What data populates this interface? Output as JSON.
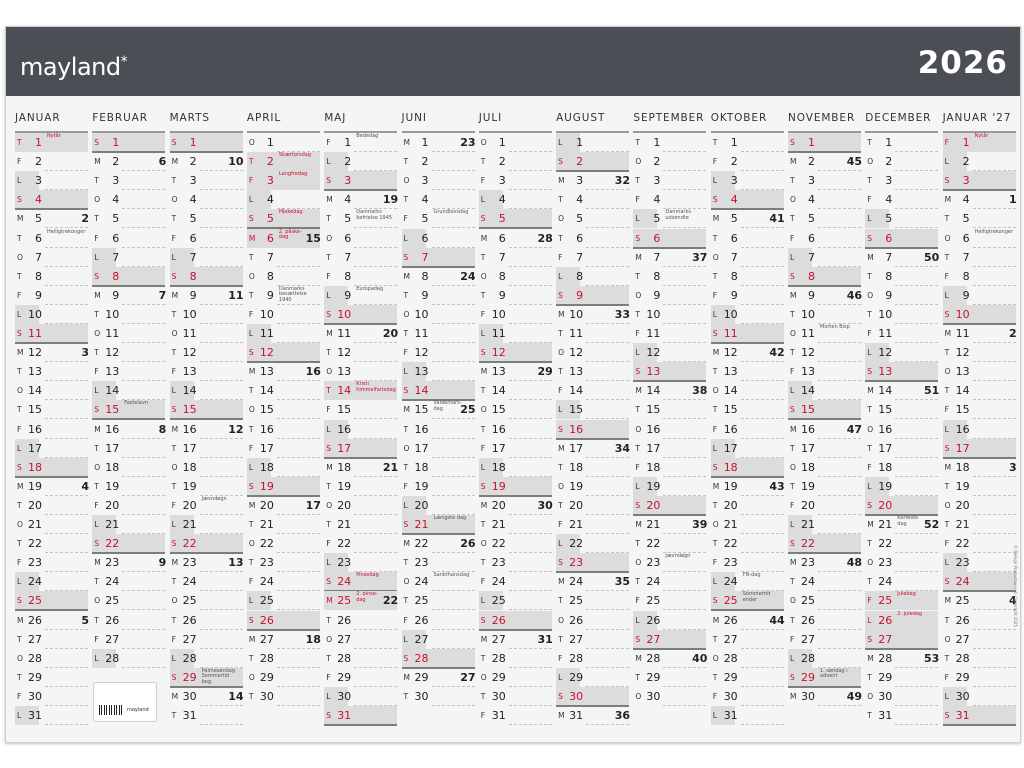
{
  "brand": {
    "logo": "mayland",
    "logo_mark": "*"
  },
  "year": "2026",
  "weekday_letters": [
    "S",
    "M",
    "T",
    "O",
    "T",
    "F",
    "L"
  ],
  "colors": {
    "header": "#4b4e54",
    "red": "#c8102e",
    "shade": "#dcdcdc"
  },
  "months": [
    {
      "name": "JANUAR",
      "y": 2026,
      "m": 1,
      "days": 31,
      "weeks": {
        "5": 2,
        "12": 3,
        "19": 4,
        "26": 5
      },
      "notes": {
        "1": {
          "text": "Nytår",
          "red": true
        },
        "6": {
          "text": "Helligtrekonger"
        }
      }
    },
    {
      "name": "FEBRUAR",
      "y": 2026,
      "m": 2,
      "days": 28,
      "weeks": {
        "2": 6,
        "9": 7,
        "16": 8,
        "23": 9
      },
      "notes": {
        "15": {
          "text": "Fastelavn"
        }
      }
    },
    {
      "name": "MARTS",
      "y": 2026,
      "m": 3,
      "days": 31,
      "weeks": {
        "2": 10,
        "9": 11,
        "16": 12,
        "23": 13,
        "30": 14
      },
      "notes": {
        "20": {
          "text": "Jævndøgn"
        },
        "29": {
          "text": "Palmesøndag\nSommertid beg."
        }
      }
    },
    {
      "name": "APRIL",
      "y": 2026,
      "m": 4,
      "days": 30,
      "weeks": {
        "6": 15,
        "13": 16,
        "20": 17,
        "27": 18
      },
      "notes": {
        "2": {
          "text": "Skærtorsdag",
          "red": true
        },
        "3": {
          "text": "Langfredag",
          "red": true
        },
        "5": {
          "text": "Påskedag",
          "red": true
        },
        "6": {
          "text": "2. påske-\ndag",
          "red": true
        },
        "9": {
          "text": "Danmarks\nbesættelse 1940"
        }
      }
    },
    {
      "name": "MAJ",
      "y": 2026,
      "m": 5,
      "days": 31,
      "weeks": {
        "4": 19,
        "11": 20,
        "18": 21,
        "25": 22
      },
      "notes": {
        "1": {
          "text": "Bededag"
        },
        "5": {
          "text": "Danmarks\nbefrielse 1945"
        },
        "9": {
          "text": "Europadag"
        },
        "14": {
          "text": "Kristi\nhimmelfartsdag",
          "red": true
        },
        "24": {
          "text": "Pinsedag",
          "red": true
        },
        "25": {
          "text": "2. pinse-\ndag",
          "red": true
        }
      }
    },
    {
      "name": "JUNI",
      "y": 2026,
      "m": 6,
      "days": 30,
      "weeks": {
        "1": 23,
        "8": 24,
        "15": 25,
        "22": 26,
        "29": 27
      },
      "notes": {
        "5": {
          "text": "Grundlovsdag"
        },
        "15": {
          "text": "Valdemars-\ndag"
        },
        "21": {
          "text": "Længste dag"
        },
        "24": {
          "text": "Sankthansdag"
        }
      }
    },
    {
      "name": "JULI",
      "y": 2026,
      "m": 7,
      "days": 31,
      "weeks": {
        "6": 28,
        "13": 29,
        "20": 30,
        "27": 31
      },
      "notes": {}
    },
    {
      "name": "AUGUST",
      "y": 2026,
      "m": 8,
      "days": 31,
      "weeks": {
        "3": 32,
        "10": 33,
        "17": 34,
        "24": 35,
        "31": 36
      },
      "notes": {}
    },
    {
      "name": "SEPTEMBER",
      "y": 2026,
      "m": 9,
      "days": 30,
      "weeks": {
        "7": 37,
        "14": 38,
        "21": 39,
        "28": 40
      },
      "notes": {
        "5": {
          "text": "Danmarks\nudsendte"
        },
        "23": {
          "text": "Jævndøgn"
        }
      }
    },
    {
      "name": "OKTOBER",
      "y": 2026,
      "m": 10,
      "days": 31,
      "weeks": {
        "5": 41,
        "12": 42,
        "19": 43,
        "26": 44
      },
      "notes": {
        "24": {
          "text": "FN-dag"
        },
        "25": {
          "text": "Sommertid\nender"
        }
      }
    },
    {
      "name": "NOVEMBER",
      "y": 2026,
      "m": 11,
      "days": 30,
      "weeks": {
        "2": 45,
        "9": 46,
        "16": 47,
        "23": 48,
        "30": 49
      },
      "notes": {
        "11": {
          "text": "Morten Bisp"
        },
        "29": {
          "text": "1. søndag i\nadvent"
        }
      }
    },
    {
      "name": "DECEMBER",
      "y": 2026,
      "m": 12,
      "days": 31,
      "weeks": {
        "7": 50,
        "14": 51,
        "21": 52,
        "28": 53
      },
      "notes": {
        "21": {
          "text": "Korteste\ndag"
        },
        "25": {
          "text": "Juledag",
          "red": true
        },
        "26": {
          "text": "2. juledag",
          "red": true
        }
      }
    },
    {
      "name": "JANUAR '27",
      "y": 2027,
      "m": 1,
      "days": 31,
      "weeks": {
        "4": 1,
        "11": 2,
        "18": 3,
        "25": 4
      },
      "notes": {
        "1": {
          "text": "Nytår",
          "red": true
        },
        "6": {
          "text": "Helligtrekonger"
        }
      }
    }
  ],
  "product_box": {
    "logo": "mayland"
  },
  "copyright": "© Design Production / © Copyright 2025"
}
